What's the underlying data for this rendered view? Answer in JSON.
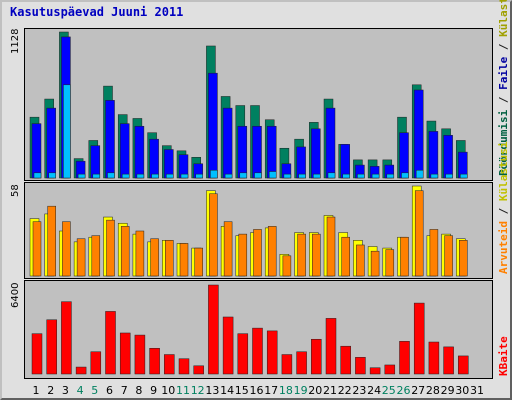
{
  "page": {
    "title": "Kasutuspäevad Juuni 2011"
  },
  "legend": {
    "top_right": [
      {
        "text": "Pöördumisi",
        "color": "#006040"
      },
      {
        "text": " / ",
        "color": "#202020"
      },
      {
        "text": "Faile",
        "color": "#0000a0"
      },
      {
        "text": " / ",
        "color": "#202020"
      },
      {
        "text": "Külastusi",
        "color": "#a0a000"
      }
    ],
    "middle_right": [
      {
        "text": "Arvuteid",
        "color": "#ff8000"
      },
      {
        "text": " / ",
        "color": "#202020"
      },
      {
        "text": "Külastusi",
        "color": "#c0c000"
      }
    ],
    "bottom_right": [
      {
        "text": "KBaite",
        "color": "#ff0000"
      }
    ]
  },
  "chart_data": [
    {
      "type": "bar",
      "title": "Kasutuspäevad Juuni 2011",
      "categories": [
        "1",
        "2",
        "3",
        "4",
        "5",
        "6",
        "7",
        "8",
        "9",
        "10",
        "11",
        "12",
        "13",
        "14",
        "15",
        "16",
        "17",
        "18",
        "19",
        "20",
        "21",
        "22",
        "23",
        "24",
        "25",
        "26",
        "27",
        "28",
        "29",
        "30",
        "31"
      ],
      "weekend_days": [
        "4",
        "5",
        "11",
        "12",
        "18",
        "19",
        "25",
        "26"
      ],
      "ylim": [
        0,
        1128
      ],
      "ytick_label": "1128",
      "series": [
        {
          "name": "Pöördumisi",
          "color": "#008060",
          "values": [
            470,
            610,
            1128,
            150,
            290,
            710,
            490,
            460,
            350,
            250,
            210,
            160,
            1020,
            630,
            560,
            560,
            450,
            230,
            300,
            430,
            610,
            260,
            140,
            140,
            140,
            470,
            720,
            440,
            380,
            290,
            0
          ]
        },
        {
          "name": "Faile",
          "color": "#0000ff",
          "values": [
            420,
            540,
            1090,
            130,
            250,
            600,
            420,
            400,
            300,
            220,
            180,
            110,
            810,
            540,
            400,
            400,
            400,
            110,
            240,
            380,
            540,
            260,
            100,
            90,
            100,
            350,
            680,
            360,
            330,
            200,
            0
          ]
        },
        {
          "name": "Külastusi",
          "color": "#00c0ff",
          "values": [
            40,
            40,
            720,
            30,
            30,
            40,
            30,
            30,
            30,
            30,
            30,
            30,
            60,
            30,
            40,
            40,
            50,
            30,
            30,
            30,
            40,
            30,
            30,
            30,
            30,
            40,
            60,
            30,
            30,
            30,
            0
          ]
        }
      ]
    },
    {
      "type": "bar",
      "ylim": [
        0,
        58
      ],
      "ytick_label": "58",
      "series": [
        {
          "name": "Külastusi",
          "color": "#ffff00",
          "values": [
            37,
            40,
            29,
            22,
            25,
            38,
            34,
            27,
            22,
            23,
            21,
            18,
            55,
            32,
            26,
            28,
            31,
            14,
            28,
            28,
            39,
            28,
            23,
            19,
            18,
            25,
            58,
            26,
            27,
            24,
            0
          ]
        },
        {
          "name": "Arvuteid",
          "color": "#ff8000",
          "values": [
            35,
            45,
            35,
            24,
            26,
            36,
            32,
            29,
            24,
            23,
            21,
            18,
            53,
            35,
            27,
            30,
            32,
            13,
            27,
            27,
            38,
            25,
            20,
            16,
            17,
            25,
            55,
            30,
            26,
            23,
            0
          ]
        }
      ]
    },
    {
      "type": "bar",
      "ylim": [
        0,
        6400
      ],
      "ytick_label": "6400",
      "series": [
        {
          "name": "KBaite",
          "color": "#ff0000",
          "values": [
            2900,
            3900,
            5200,
            500,
            1600,
            4500,
            2950,
            2800,
            1850,
            1400,
            1100,
            590,
            6400,
            4100,
            2900,
            3300,
            3100,
            1400,
            1600,
            2500,
            4000,
            2000,
            1200,
            450,
            650,
            2350,
            5100,
            2300,
            1950,
            1300,
            0
          ]
        }
      ]
    }
  ]
}
